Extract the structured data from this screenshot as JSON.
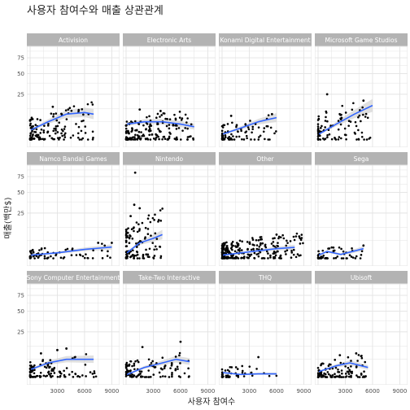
{
  "chart_data": {
    "type": "scatter",
    "title": "사용자 참여수와 매출 상관관계",
    "xlabel": "사용자 참여수",
    "ylabel": "매출(백만$)",
    "y_ticks": [
      "75",
      "50",
      "25"
    ],
    "x_ticks": [
      "3000",
      "6000",
      "9000"
    ],
    "xlim": [
      0,
      9500
    ],
    "y_scale": "sqrt",
    "y_range": [
      0,
      90
    ],
    "grid": true,
    "smooth": true,
    "colors": {
      "panel_bg": "#ffffff",
      "grid": "#e3e3e3",
      "strip_bg": "#b3b3b3",
      "point": "#000000",
      "smooth_line": "#3366ff",
      "ribbon": "#cccccc"
    },
    "panels": [
      {
        "name": "Activision",
        "n": 140,
        "xmax": 7000,
        "ymax": 18,
        "outliers": [
          [
            2500,
            14
          ],
          [
            4200,
            12
          ]
        ],
        "trend": [
          [
            100,
            2
          ],
          [
            2000,
            5
          ],
          [
            4000,
            9
          ],
          [
            6000,
            10
          ],
          [
            7000,
            9
          ]
        ]
      },
      {
        "name": "Electronic Arts",
        "n": 180,
        "xmax": 7500,
        "ymax": 14,
        "outliers": [
          [
            1500,
            12
          ],
          [
            3800,
            11
          ]
        ],
        "trend": [
          [
            100,
            4
          ],
          [
            2000,
            5
          ],
          [
            4000,
            5
          ],
          [
            6000,
            4
          ],
          [
            7500,
            3
          ]
        ]
      },
      {
        "name": "Konami Digital Entertainment",
        "n": 90,
        "xmax": 6000,
        "ymax": 9,
        "outliers": [
          [
            5500,
            9
          ],
          [
            1000,
            8
          ]
        ],
        "trend": [
          [
            100,
            1
          ],
          [
            2000,
            2.5
          ],
          [
            4000,
            5
          ],
          [
            5000,
            6
          ],
          [
            6000,
            7
          ]
        ]
      },
      {
        "name": "Microsoft Game Studios",
        "n": 100,
        "xmax": 6000,
        "ymax": 24,
        "outliers": [
          [
            1000,
            25
          ],
          [
            5000,
            19
          ]
        ],
        "trend": [
          [
            100,
            1
          ],
          [
            2000,
            4
          ],
          [
            4000,
            9
          ],
          [
            6000,
            15
          ]
        ]
      },
      {
        "name": "Namco Bandai Games",
        "n": 70,
        "xmax": 9000,
        "ymax": 4,
        "outliers": [
          [
            9000,
            4
          ],
          [
            7500,
            4
          ]
        ],
        "trend": [
          [
            100,
            0.6
          ],
          [
            3000,
            1
          ],
          [
            6000,
            1.8
          ],
          [
            9000,
            2.5
          ]
        ]
      },
      {
        "name": "Nintendo",
        "n": 120,
        "xmax": 4000,
        "ymax": 30,
        "outliers": [
          [
            1000,
            82
          ],
          [
            900,
            34
          ],
          [
            1500,
            30
          ],
          [
            500,
            22
          ]
        ],
        "trend": [
          [
            100,
            1
          ],
          [
            1500,
            4
          ],
          [
            3000,
            6
          ],
          [
            4000,
            8
          ]
        ]
      },
      {
        "name": "Other",
        "n": 260,
        "xmax": 9000,
        "ymax": 10,
        "outliers": [
          [
            6000,
            8
          ],
          [
            8500,
            7
          ]
        ],
        "trend": [
          [
            100,
            0.6
          ],
          [
            3000,
            1.2
          ],
          [
            6000,
            2
          ],
          [
            8000,
            2.4
          ]
        ]
      },
      {
        "name": "Sega",
        "n": 60,
        "xmax": 5000,
        "ymax": 4,
        "outliers": [
          [
            5000,
            3
          ]
        ],
        "trend": [
          [
            100,
            0.6
          ],
          [
            1000,
            1.3
          ],
          [
            2500,
            0.7
          ],
          [
            5000,
            2
          ]
        ]
      },
      {
        "name": "Sony Computer Entertainment",
        "n": 110,
        "xmax": 7500,
        "ymax": 9,
        "outliers": [
          [
            4000,
            11
          ],
          [
            3000,
            10
          ],
          [
            1200,
            8
          ]
        ],
        "trend": [
          [
            100,
            1.5
          ],
          [
            2000,
            3.5
          ],
          [
            4000,
            5
          ],
          [
            7000,
            5
          ]
        ]
      },
      {
        "name": "Take-Two Interactive",
        "n": 110,
        "xmax": 7000,
        "ymax": 9,
        "outliers": [
          [
            6000,
            16
          ],
          [
            1800,
            12
          ]
        ],
        "trend": [
          [
            100,
            0.5
          ],
          [
            2000,
            2
          ],
          [
            4000,
            3.5
          ],
          [
            5500,
            5
          ],
          [
            7000,
            4
          ]
        ]
      },
      {
        "name": "THQ",
        "n": 50,
        "xmax": 6000,
        "ymax": 4,
        "outliers": [
          [
            4000,
            6
          ]
        ],
        "trend": [
          [
            100,
            0.8
          ],
          [
            2000,
            0.5
          ],
          [
            4000,
            0.6
          ],
          [
            6000,
            0.6
          ]
        ]
      },
      {
        "name": "Ubisoft",
        "n": 110,
        "xmax": 5500,
        "ymax": 8,
        "outliers": [
          [
            4200,
            8
          ],
          [
            2400,
            7
          ]
        ],
        "trend": [
          [
            100,
            1
          ],
          [
            2000,
            2.5
          ],
          [
            3500,
            3.5
          ],
          [
            5500,
            2
          ]
        ]
      }
    ]
  }
}
